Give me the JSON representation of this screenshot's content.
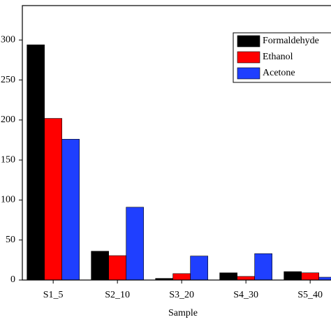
{
  "chart_data": {
    "type": "bar",
    "x_label": "Sample",
    "categories": [
      "S1_5",
      "S2_10",
      "S3_20",
      "S4_30",
      "S5_40"
    ],
    "series": [
      {
        "name": "Formaldehyde",
        "color": "#000000",
        "values": [
          294,
          36,
          2,
          9,
          10.5
        ]
      },
      {
        "name": "Ethanol",
        "color": "#ff0000",
        "values": [
          202,
          30.5,
          8,
          4.5,
          9
        ]
      },
      {
        "name": "Acetone",
        "color": "#1f3fff",
        "values": [
          176,
          91,
          30,
          33,
          3.5
        ]
      }
    ],
    "ylim": [
      0,
      343
    ],
    "yticks": [
      0,
      50,
      100,
      150,
      200,
      250,
      300
    ],
    "legend": "upper right"
  }
}
